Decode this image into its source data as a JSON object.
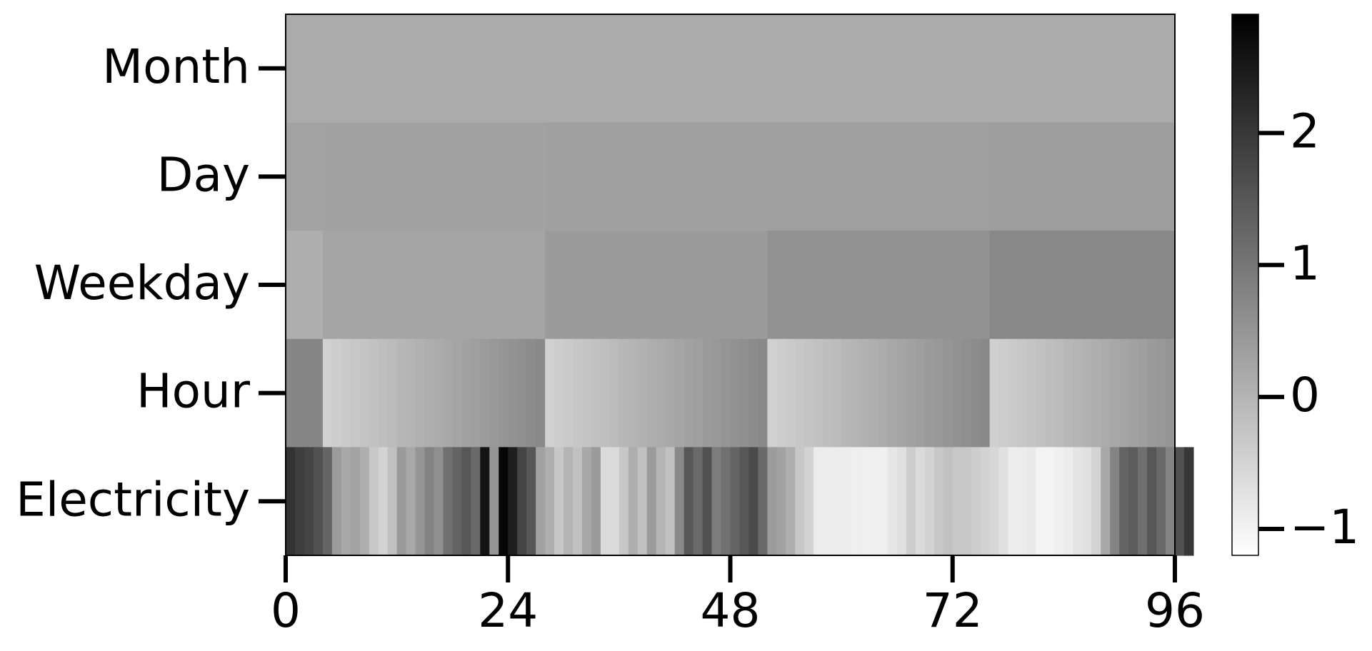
{
  "chart_data": {
    "type": "heatmap",
    "title": "",
    "xlabel": "",
    "ylabel": "",
    "rows": [
      "Month",
      "Day",
      "Weekday",
      "Hour",
      "Electricity"
    ],
    "x_range": [
      0,
      96
    ],
    "x_ticks": [
      0,
      24,
      48,
      72,
      96
    ],
    "x_tick_labels": [
      "0",
      "24",
      "48",
      "72",
      "96"
    ],
    "colormap": "gray_r",
    "colorbar": {
      "vmin": -1.2,
      "vmax": 2.9,
      "ticks": [
        -1,
        0,
        1,
        2
      ],
      "tick_labels": [
        "−1",
        "0",
        "1",
        "2"
      ]
    },
    "values": [
      [
        0.15,
        0.15,
        0.15,
        0.15,
        0.15,
        0.15,
        0.15,
        0.15,
        0.15,
        0.15,
        0.15,
        0.15,
        0.15,
        0.15,
        0.15,
        0.15,
        0.15,
        0.15,
        0.15,
        0.15,
        0.15,
        0.15,
        0.15,
        0.15,
        0.15,
        0.15,
        0.15,
        0.15,
        0.15,
        0.15,
        0.15,
        0.15,
        0.15,
        0.15,
        0.15,
        0.15,
        0.15,
        0.15,
        0.15,
        0.15,
        0.15,
        0.15,
        0.15,
        0.15,
        0.15,
        0.15,
        0.15,
        0.15,
        0.15,
        0.15,
        0.15,
        0.15,
        0.15,
        0.15,
        0.15,
        0.15,
        0.15,
        0.15,
        0.15,
        0.15,
        0.15,
        0.15,
        0.15,
        0.15,
        0.15,
        0.15,
        0.15,
        0.15,
        0.15,
        0.15,
        0.15,
        0.15,
        0.15,
        0.15,
        0.15,
        0.15,
        0.15,
        0.15,
        0.15,
        0.15,
        0.15,
        0.15,
        0.15,
        0.15,
        0.15,
        0.15,
        0.15,
        0.15,
        0.15,
        0.15,
        0.15,
        0.15,
        0.15,
        0.15,
        0.15,
        0.15
      ],
      [
        0.28,
        0.28,
        0.28,
        0.28,
        0.3,
        0.3,
        0.3,
        0.3,
        0.3,
        0.3,
        0.3,
        0.3,
        0.3,
        0.3,
        0.3,
        0.3,
        0.3,
        0.3,
        0.3,
        0.3,
        0.3,
        0.3,
        0.3,
        0.3,
        0.3,
        0.3,
        0.3,
        0.3,
        0.33,
        0.33,
        0.33,
        0.33,
        0.33,
        0.33,
        0.33,
        0.33,
        0.33,
        0.33,
        0.33,
        0.33,
        0.33,
        0.33,
        0.33,
        0.33,
        0.33,
        0.33,
        0.33,
        0.33,
        0.33,
        0.33,
        0.33,
        0.33,
        0.35,
        0.35,
        0.35,
        0.35,
        0.35,
        0.35,
        0.35,
        0.35,
        0.35,
        0.35,
        0.35,
        0.35,
        0.35,
        0.35,
        0.35,
        0.35,
        0.35,
        0.35,
        0.35,
        0.35,
        0.35,
        0.35,
        0.35,
        0.35,
        0.37,
        0.37,
        0.37,
        0.37,
        0.37,
        0.37,
        0.37,
        0.37,
        0.37,
        0.37,
        0.37,
        0.37,
        0.37,
        0.37,
        0.37,
        0.37,
        0.37,
        0.37,
        0.37,
        0.37
      ],
      [
        0.1,
        0.1,
        0.1,
        0.1,
        0.25,
        0.25,
        0.25,
        0.25,
        0.25,
        0.25,
        0.25,
        0.25,
        0.25,
        0.25,
        0.25,
        0.25,
        0.25,
        0.25,
        0.25,
        0.25,
        0.25,
        0.25,
        0.25,
        0.25,
        0.25,
        0.25,
        0.25,
        0.25,
        0.4,
        0.4,
        0.4,
        0.4,
        0.4,
        0.4,
        0.4,
        0.4,
        0.4,
        0.4,
        0.4,
        0.4,
        0.4,
        0.4,
        0.4,
        0.4,
        0.4,
        0.4,
        0.4,
        0.4,
        0.4,
        0.4,
        0.4,
        0.4,
        0.55,
        0.55,
        0.55,
        0.55,
        0.55,
        0.55,
        0.55,
        0.55,
        0.55,
        0.55,
        0.55,
        0.55,
        0.55,
        0.55,
        0.55,
        0.55,
        0.55,
        0.55,
        0.55,
        0.55,
        0.55,
        0.55,
        0.55,
        0.55,
        0.72,
        0.72,
        0.72,
        0.72,
        0.72,
        0.72,
        0.72,
        0.72,
        0.72,
        0.72,
        0.72,
        0.72,
        0.72,
        0.72,
        0.72,
        0.72,
        0.72,
        0.72,
        0.72,
        0.72
      ],
      [
        0.75,
        0.75,
        0.75,
        0.75,
        -0.45,
        -0.4,
        -0.35,
        -0.3,
        -0.25,
        -0.2,
        -0.15,
        -0.1,
        -0.05,
        0.0,
        0.05,
        0.1,
        0.15,
        0.2,
        0.25,
        0.3,
        0.35,
        0.4,
        0.45,
        0.5,
        0.55,
        0.6,
        0.65,
        0.7,
        -0.45,
        -0.4,
        -0.35,
        -0.3,
        -0.25,
        -0.2,
        -0.15,
        -0.1,
        -0.05,
        0.0,
        0.05,
        0.1,
        0.15,
        0.2,
        0.25,
        0.3,
        0.35,
        0.4,
        0.45,
        0.5,
        0.55,
        0.6,
        0.65,
        0.7,
        -0.45,
        -0.4,
        -0.35,
        -0.3,
        -0.25,
        -0.2,
        -0.15,
        -0.1,
        -0.05,
        0.0,
        0.05,
        0.1,
        0.15,
        0.2,
        0.25,
        0.3,
        0.35,
        0.4,
        0.45,
        0.5,
        0.55,
        0.6,
        0.65,
        0.7,
        -0.45,
        -0.4,
        -0.35,
        -0.3,
        -0.25,
        -0.2,
        -0.15,
        -0.1,
        -0.05,
        0.0,
        0.05,
        0.1,
        0.15,
        0.2,
        0.25,
        0.3,
        0.35,
        0.4,
        0.45,
        0.5
      ],
      [
        2.1,
        1.9,
        1.8,
        1.6,
        1.3,
        0.4,
        0.2,
        0.3,
        0.1,
        -0.3,
        -0.5,
        -0.2,
        0.4,
        0.2,
        0.5,
        0.8,
        0.6,
        1.1,
        1.3,
        1.5,
        1.2,
        2.6,
        0.5,
        2.8,
        2.4,
        1.8,
        1.5,
        0.3,
        0.1,
        -0.3,
        0.0,
        -0.2,
        0.2,
        0.4,
        -0.6,
        -0.6,
        -0.3,
        0.1,
        -0.2,
        0.4,
        0.0,
        -0.2,
        0.7,
        1.5,
        1.2,
        1.6,
        0.9,
        1.1,
        1.3,
        1.5,
        1.7,
        1.2,
        0.4,
        0.3,
        0.1,
        -0.3,
        -0.5,
        -0.9,
        -0.9,
        -0.9,
        -0.9,
        -0.95,
        -0.95,
        -0.95,
        -0.95,
        -0.8,
        -0.7,
        -0.4,
        -0.6,
        -0.5,
        -0.3,
        -0.2,
        -0.3,
        -0.3,
        -0.4,
        -0.5,
        -0.55,
        -0.7,
        -0.9,
        -0.9,
        -0.85,
        -1.0,
        -1.0,
        -0.95,
        -0.9,
        -0.75,
        -0.7,
        -0.5,
        0.2,
        0.8,
        1.3,
        1.4,
        1.1,
        1.5,
        1.2,
        0.8,
        1.6,
        2.0
      ]
    ]
  }
}
